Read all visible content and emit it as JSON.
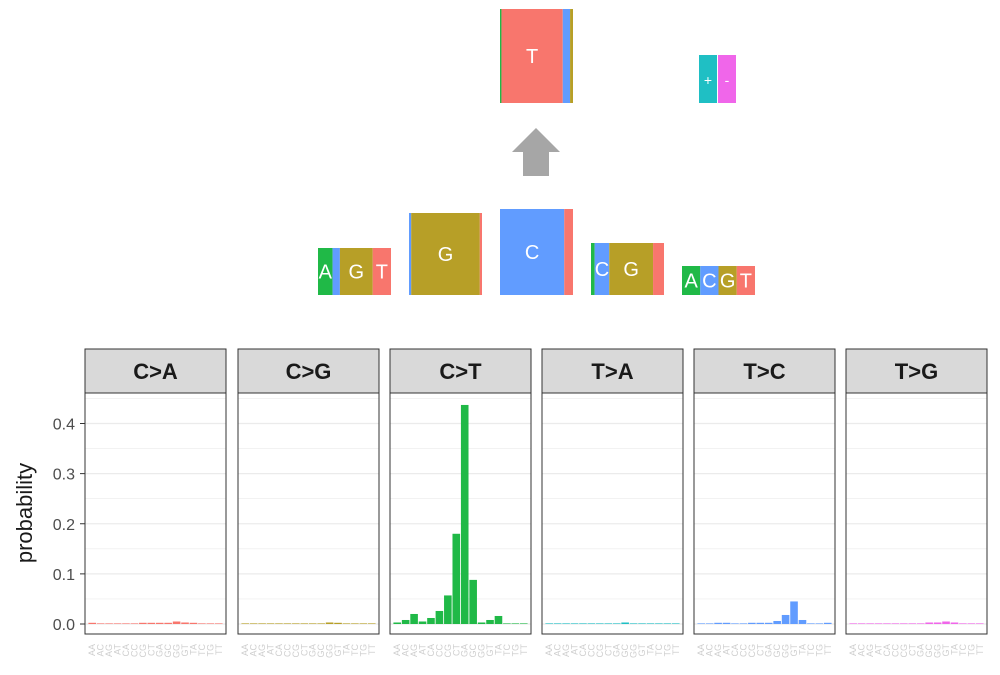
{
  "colors": {
    "A": "#20b947",
    "C": "#619cff",
    "G": "#b79f27",
    "T": "#f8766d",
    "plus": "#1fbfc4",
    "minus": "#f066ea",
    "arrow": "#a6a6a6",
    "strip_bg": "#d9d9d9",
    "grid": "#ebebeb"
  },
  "logo": {
    "upstream": [
      {
        "letters": [
          {
            "b": "A",
            "p": 0.2
          },
          {
            "b": "C",
            "p": 0.1
          },
          {
            "b": "G",
            "p": 0.45
          },
          {
            "b": "T",
            "p": 0.25
          }
        ]
      },
      {
        "letters": [
          {
            "b": "C",
            "p": 0.03
          },
          {
            "b": "G",
            "p": 0.94
          },
          {
            "b": "T",
            "p": 0.03
          }
        ]
      }
    ],
    "center": {
      "letters": [
        {
          "b": "C",
          "p": 0.88
        },
        {
          "b": "T",
          "p": 0.12
        }
      ]
    },
    "mutation": {
      "letters": [
        {
          "b": "A",
          "p": 0.02
        },
        {
          "b": "T",
          "p": 0.84
        },
        {
          "b": "C",
          "p": 0.1
        },
        {
          "b": "G",
          "p": 0.04
        }
      ]
    },
    "downstream": [
      {
        "letters": [
          {
            "b": "A",
            "p": 0.05
          },
          {
            "b": "C",
            "p": 0.2
          },
          {
            "b": "G",
            "p": 0.6
          },
          {
            "b": "T",
            "p": 0.15
          }
        ]
      },
      {
        "letters": [
          {
            "b": "A",
            "p": 0.25
          },
          {
            "b": "C",
            "p": 0.25
          },
          {
            "b": "G",
            "p": 0.25
          },
          {
            "b": "T",
            "p": 0.25
          }
        ]
      }
    ],
    "strand": [
      {
        "label": "+",
        "color_key": "plus"
      },
      {
        "label": "-",
        "color_key": "minus"
      }
    ]
  },
  "chart_data": {
    "type": "bar",
    "ylabel": "probability",
    "ylim": [
      0,
      0.45
    ],
    "yticks": [
      0.0,
      0.1,
      0.2,
      0.3,
      0.4
    ],
    "ytick_labels": [
      "0.0",
      "0.1",
      "0.2",
      "0.3",
      "0.4"
    ],
    "grid": true,
    "categories": [
      "AA",
      "AC",
      "AG",
      "AT",
      "CA",
      "CC",
      "CG",
      "CT",
      "GA",
      "GC",
      "GG",
      "GT",
      "TA",
      "TC",
      "TG",
      "TT"
    ],
    "series": [
      {
        "name": "C>A",
        "color_key": "T",
        "values": [
          0.0005,
          0,
          0,
          0,
          0,
          0,
          0.0005,
          0.001,
          0.001,
          0.002,
          0.005,
          0.003,
          0.001,
          0,
          0,
          0
        ]
      },
      {
        "name": "C>G",
        "color_key": "G",
        "values": [
          0,
          0,
          0,
          0,
          0,
          0,
          0,
          0,
          0,
          0,
          0.003,
          0.001,
          0,
          0,
          0,
          0
        ]
      },
      {
        "name": "C>T",
        "color_key": "A",
        "values": [
          0.003,
          0.008,
          0.02,
          0.005,
          0.012,
          0.026,
          0.057,
          0.18,
          0.437,
          0.088,
          0.003,
          0.008,
          0.016,
          0,
          0,
          0
        ]
      },
      {
        "name": "T>A",
        "color_key": "plus",
        "values": [
          0,
          0,
          0,
          0,
          0,
          0,
          0,
          0,
          0,
          0.003,
          0,
          0,
          0,
          0,
          0,
          0
        ]
      },
      {
        "name": "T>C",
        "color_key": "C",
        "values": [
          0,
          0,
          0.002,
          0.001,
          0,
          0,
          0.002,
          0.002,
          0.002,
          0.006,
          0.018,
          0.045,
          0.008,
          0,
          0,
          0.002
        ]
      },
      {
        "name": "T>G",
        "color_key": "minus",
        "values": [
          0,
          0,
          0,
          0,
          0,
          0,
          0,
          0,
          0,
          0.003,
          0.003,
          0.005,
          0.003,
          0,
          0,
          0
        ]
      }
    ]
  }
}
